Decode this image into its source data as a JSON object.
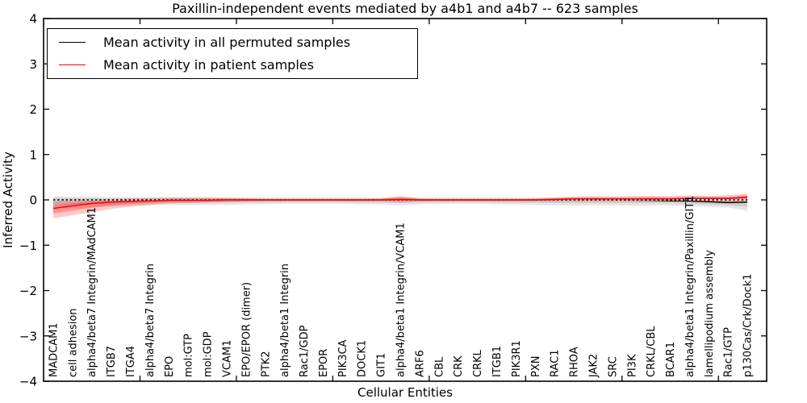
{
  "title": "Paxillin-independent events mediated by a4b1 and a4b7 -- 623 samples",
  "axes": {
    "xlabel": "Cellular Entities",
    "ylabel": "Inferred Activity",
    "ylim": [
      -4,
      4
    ],
    "ytick_values": [
      4,
      3,
      2,
      1,
      0,
      -1,
      -2,
      -3,
      -4
    ],
    "ytick_labels": [
      "4",
      "3",
      "2",
      "1",
      "0",
      "−1",
      "−2",
      "−3",
      "−4"
    ],
    "xtick_positions": [
      5,
      10,
      15,
      20,
      25,
      30,
      35
    ]
  },
  "legend": {
    "entries": [
      {
        "label": "Mean activity in all permuted samples",
        "color": "#000000"
      },
      {
        "label": "Mean activity in patient samples",
        "color": "#ff0000"
      }
    ]
  },
  "colors": {
    "permuted_line": "#000000",
    "patient_line": "#ff0000",
    "permuted_band": "#c8c8c8",
    "patient_band": "#f08080",
    "zero_dash_line": "#000000",
    "frame": "#000000",
    "background": "#ffffff"
  },
  "chart_data": {
    "type": "line",
    "title": "Paxillin-independent events mediated by a4b1 and a4b7 -- 623 samples",
    "xlabel": "Cellular Entities",
    "ylabel": "Inferred Activity",
    "ylim": [
      -4,
      4
    ],
    "grid": false,
    "legend_position": "upper left",
    "categories": [
      "MADCAM1",
      "cell adhesion",
      "alpha4/beta7 Integrin/MAdCAM1",
      "ITGB7",
      "ITGA4",
      "alpha4/beta7 Integrin",
      "EPO",
      "mol:GTP",
      "mol:GDP",
      "VCAM1",
      "EPO/EPOR (dimer)",
      "PTK2",
      "alpha4/beta1 Integrin",
      "Rac1/GDP",
      "EPOR",
      "PIK3CA",
      "DOCK1",
      "GIT1",
      "alpha4/beta1 Integrin/VCAM1",
      "ARF6",
      "CBL",
      "CRK",
      "CRKL",
      "ITGB1",
      "PIK3R1",
      "PXN",
      "RAC1",
      "RHOA",
      "JAK2",
      "SRC",
      "PI3K",
      "CRKL/CBL",
      "BCAR1",
      "alpha4/beta1 Integrin/Paxillin/GIT1",
      "lamellipodium assembly",
      "Rac1/GTP",
      "p130Cas/Crk/Dock1"
    ],
    "series": [
      {
        "name": "Mean activity in all permuted samples",
        "color": "#000000",
        "values": [
          0,
          0,
          0,
          0,
          0,
          0,
          0,
          0,
          0,
          0,
          0,
          0,
          0,
          0,
          0,
          0,
          0,
          0,
          0,
          0,
          0,
          0,
          0,
          0,
          0,
          0,
          0,
          0,
          0,
          0,
          -0.005,
          -0.01,
          -0.02,
          -0.025,
          -0.04,
          -0.06,
          -0.05
        ]
      },
      {
        "name": "Mean activity in patient samples",
        "color": "#ff0000",
        "values": [
          -0.19,
          -0.13,
          -0.08,
          -0.05,
          -0.03,
          -0.02,
          -0.01,
          -0.01,
          -0.01,
          0,
          0,
          0,
          0,
          0,
          0,
          0,
          0,
          0,
          0.01,
          0,
          0,
          0,
          0,
          0,
          0,
          0,
          0.01,
          0.02,
          0.02,
          0.02,
          0.02,
          0.02,
          0.02,
          0.03,
          0.03,
          0.03,
          0.06
        ]
      }
    ],
    "bands": [
      {
        "name": "permuted samples spread",
        "color": "#000000",
        "upper": [
          0.08,
          0.07,
          0.07,
          0.06,
          0.06,
          0.06,
          0.06,
          0.06,
          0.06,
          0.06,
          0.06,
          0.05,
          0.05,
          0.05,
          0.05,
          0.05,
          0.05,
          0.05,
          0.06,
          0.05,
          0.05,
          0.05,
          0.05,
          0.05,
          0.05,
          0.05,
          0.06,
          0.06,
          0.06,
          0.06,
          0.06,
          0.06,
          0.06,
          0.06,
          0.06,
          0.06,
          0.07
        ],
        "lower": [
          -0.2,
          -0.18,
          -0.16,
          -0.14,
          -0.13,
          -0.12,
          -0.11,
          -0.11,
          -0.11,
          -0.11,
          -0.1,
          -0.1,
          -0.09,
          -0.09,
          -0.09,
          -0.09,
          -0.1,
          -0.1,
          -0.12,
          -0.1,
          -0.09,
          -0.09,
          -0.09,
          -0.1,
          -0.1,
          -0.11,
          -0.12,
          -0.13,
          -0.12,
          -0.12,
          -0.13,
          -0.12,
          -0.12,
          -0.14,
          -0.15,
          -0.17,
          -0.24
        ]
      },
      {
        "name": "patient samples spread",
        "color": "#ff0000",
        "upper": [
          -0.04,
          -0.01,
          0.01,
          0.02,
          0.03,
          0.04,
          0.05,
          0.05,
          0.05,
          0.04,
          0.03,
          0.02,
          0.02,
          0.02,
          0.02,
          0.02,
          0.02,
          0.03,
          0.09,
          0.03,
          0.02,
          0.02,
          0.02,
          0.02,
          0.02,
          0.03,
          0.05,
          0.07,
          0.08,
          0.07,
          0.08,
          0.09,
          0.08,
          0.1,
          0.09,
          0.1,
          0.14
        ],
        "lower": [
          -0.41,
          -0.34,
          -0.27,
          -0.2,
          -0.15,
          -0.11,
          -0.08,
          -0.07,
          -0.06,
          -0.05,
          -0.04,
          -0.03,
          -0.03,
          -0.03,
          -0.03,
          -0.03,
          -0.03,
          -0.03,
          -0.05,
          -0.03,
          -0.03,
          -0.03,
          -0.03,
          -0.03,
          -0.03,
          -0.03,
          -0.03,
          -0.03,
          -0.03,
          -0.03,
          -0.03,
          -0.03,
          -0.03,
          -0.04,
          -0.04,
          -0.04,
          -0.06
        ]
      }
    ]
  }
}
